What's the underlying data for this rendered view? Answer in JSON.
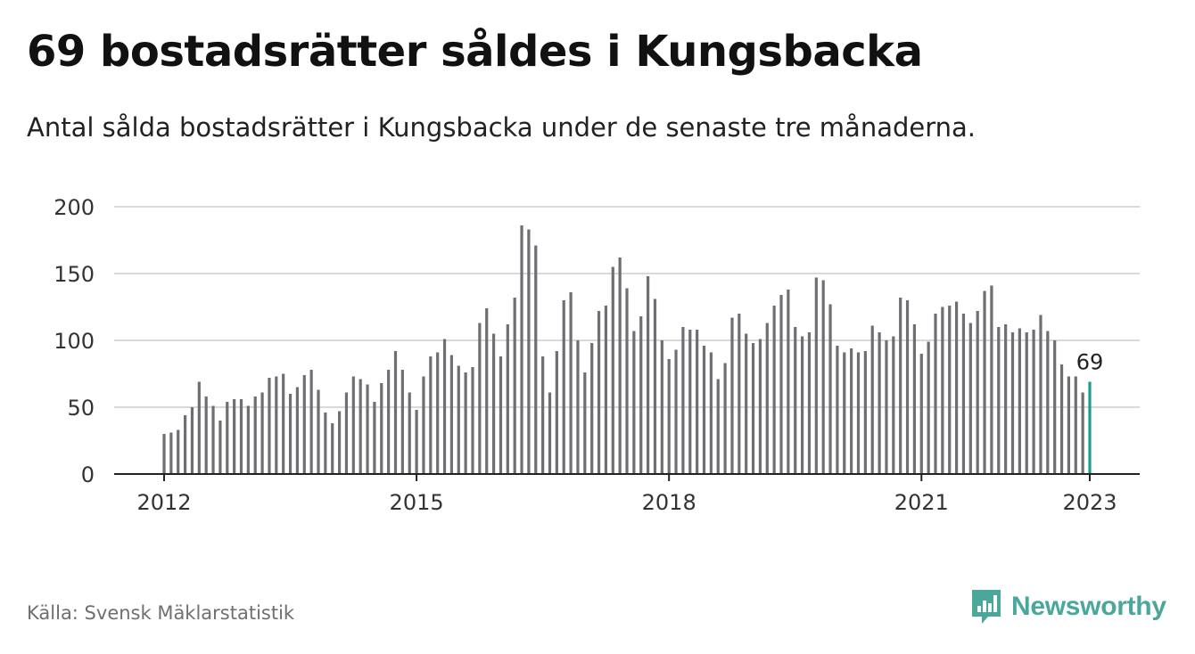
{
  "title": "69 bostadsrätter såldes i Kungsbacka",
  "subtitle": "Antal sålda bostadsrätter i Kungsbacka under de senaste tre månaderna.",
  "source": "Källa: Svensk Mäklarstatistik",
  "brand": "Newsworthy",
  "colors": {
    "bar": "#6e6e73",
    "highlight": "#1a9e8c",
    "grid": "#d9d9d9",
    "axis": "#222222",
    "brand": "#4aa79b"
  },
  "chart_data": {
    "type": "bar",
    "x_start": "2012-01",
    "x_ticks": [
      "2012",
      "2015",
      "2018",
      "2021",
      "2023"
    ],
    "y_ticks": [
      0,
      50,
      100,
      150,
      200
    ],
    "ylim": [
      0,
      200
    ],
    "grid": true,
    "highlight_label": "69",
    "values": [
      30,
      31,
      33,
      44,
      50,
      69,
      58,
      51,
      40,
      54,
      56,
      56,
      51,
      58,
      61,
      72,
      73,
      75,
      60,
      65,
      74,
      78,
      63,
      46,
      38,
      47,
      61,
      73,
      71,
      67,
      54,
      68,
      78,
      92,
      78,
      61,
      48,
      73,
      88,
      91,
      101,
      89,
      81,
      76,
      80,
      113,
      124,
      105,
      88,
      112,
      132,
      186,
      183,
      171,
      88,
      61,
      92,
      130,
      136,
      100,
      76,
      98,
      122,
      126,
      155,
      162,
      139,
      107,
      118,
      148,
      131,
      100,
      86,
      93,
      110,
      108,
      108,
      96,
      91,
      71,
      83,
      117,
      120,
      105,
      98,
      101,
      113,
      126,
      134,
      138,
      110,
      103,
      106,
      147,
      145,
      127,
      96,
      91,
      94,
      91,
      92,
      111,
      106,
      100,
      103,
      132,
      130,
      112,
      90,
      99,
      120,
      125,
      126,
      129,
      120,
      113,
      122,
      137,
      141,
      110,
      112,
      106,
      109,
      106,
      108,
      119,
      107,
      100,
      82,
      73,
      73,
      61,
      69
    ]
  }
}
